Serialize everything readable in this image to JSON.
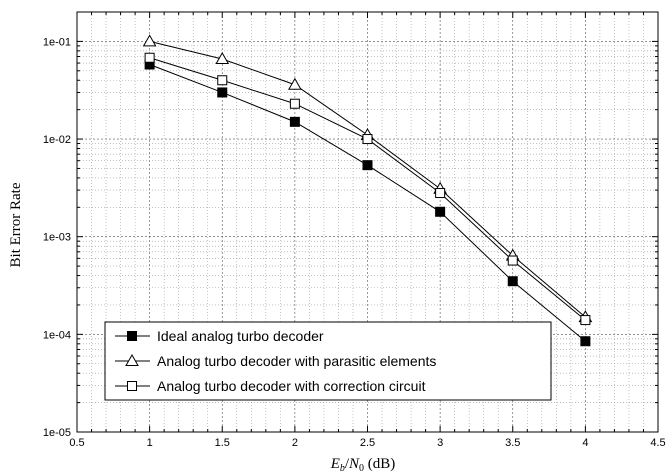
{
  "chart_data": {
    "type": "line",
    "xlabel": "E_b/N_0 (dB)",
    "ylabel": "Bit Error Rate",
    "xlim": [
      0.5,
      4.5
    ],
    "ylim": [
      1e-05,
      0.2
    ],
    "yscale": "log",
    "grid": true,
    "legend_position": "bottom-left",
    "x_ticks": [
      "0.5",
      "1",
      "1.5",
      "2",
      "2.5",
      "3",
      "3.5",
      "4",
      "4.5"
    ],
    "y_ticks": [
      "1e-01",
      "1e-02",
      "1e-03",
      "1e-04",
      "1e-05"
    ],
    "x": [
      1,
      1.5,
      2,
      2.5,
      3,
      3.5,
      4
    ],
    "series": [
      {
        "name": "Ideal analog turbo decoder",
        "marker": "filled-square",
        "values": [
          0.058,
          0.03,
          0.015,
          0.0054,
          0.0018,
          0.00035,
          8.5e-05
        ]
      },
      {
        "name": "Analog turbo decoder with parasitic elements",
        "marker": "open-triangle",
        "values": [
          0.1,
          0.066,
          0.036,
          0.011,
          0.0031,
          0.00064,
          0.00015
        ]
      },
      {
        "name": "Analog turbo decoder with correction circuit",
        "marker": "open-square",
        "values": [
          0.068,
          0.04,
          0.023,
          0.01,
          0.0028,
          0.00057,
          0.00014
        ]
      }
    ]
  }
}
